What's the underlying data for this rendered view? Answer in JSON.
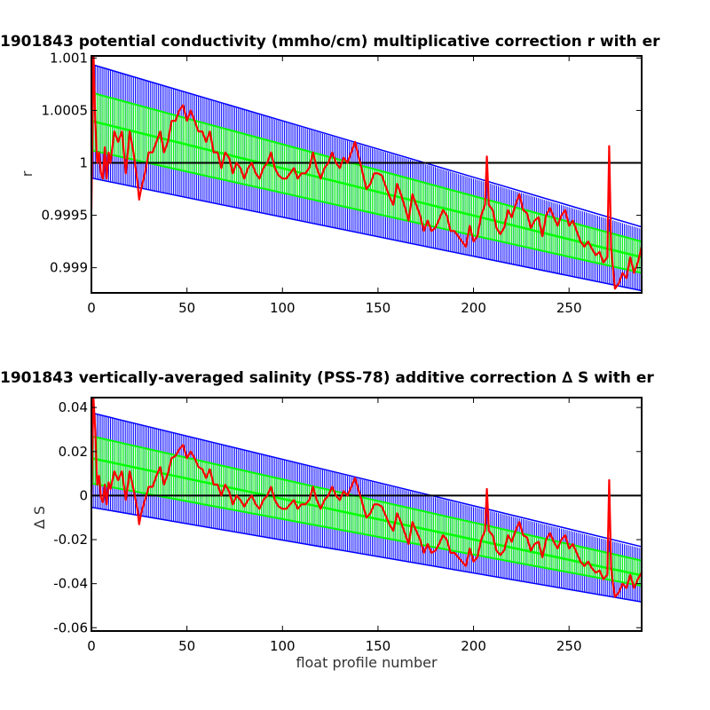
{
  "figure": {
    "float_id": "1901843"
  },
  "chart_data": [
    {
      "type": "line",
      "title": "1901843 potential conductivity (mmho/cm) multiplicative correction r with er",
      "xlabel": "",
      "ylabel": "r",
      "xlim": [
        0,
        288
      ],
      "ylim": [
        0.99876,
        1.00102
      ],
      "xticks": [
        "0",
        "50",
        "100",
        "150",
        "200",
        "250"
      ],
      "yticks": [
        "0.999",
        "0.9995",
        "1",
        "1.0005",
        "1.001"
      ],
      "reference_line": 1.0,
      "grid": false,
      "legend": "none",
      "colors": {
        "outer_band": "#0000ff",
        "inner_band": "#00ff00",
        "series": "#ff0000",
        "reference": "#000000"
      },
      "outer_band": {
        "x": [
          0,
          288
        ],
        "lower": [
          0.999855,
          0.998775
        ],
        "upper": [
          1.00094,
          0.99937
        ]
      },
      "inner_band": {
        "x": [
          0,
          288
        ],
        "lower": [
          1.00012,
          0.99895
        ],
        "upper": [
          1.00067,
          0.99925
        ]
      },
      "center_line": {
        "x": [
          0,
          288
        ],
        "y": [
          1.0004,
          0.9991
        ]
      },
      "series": [
        {
          "x": [
            0,
            1,
            2,
            3,
            4,
            5,
            6,
            7,
            8,
            9,
            10,
            12,
            14,
            16,
            18,
            20,
            22,
            24,
            25,
            26,
            28,
            30,
            32,
            34,
            36,
            38,
            40,
            42,
            44,
            46,
            48,
            50,
            52,
            54,
            56,
            58,
            60,
            62,
            64,
            66,
            68,
            70,
            72,
            74,
            76,
            78,
            80,
            82,
            84,
            86,
            88,
            90,
            92,
            94,
            96,
            98,
            100,
            102,
            104,
            106,
            108,
            110,
            112,
            114,
            116,
            118,
            120,
            122,
            124,
            126,
            128,
            130,
            132,
            134,
            136,
            138,
            140,
            142,
            144,
            146,
            148,
            150,
            152,
            154,
            156,
            158,
            160,
            162,
            164,
            166,
            168,
            170,
            172,
            174,
            176,
            178,
            180,
            182,
            184,
            186,
            188,
            190,
            192,
            194,
            196,
            198,
            200,
            202,
            204,
            206,
            207,
            208,
            210,
            212,
            214,
            216,
            218,
            220,
            222,
            224,
            226,
            228,
            230,
            232,
            234,
            236,
            238,
            240,
            242,
            244,
            246,
            248,
            250,
            252,
            254,
            256,
            258,
            260,
            262,
            264,
            266,
            268,
            270,
            271,
            272,
            273,
            274,
            276,
            278,
            280,
            282,
            284,
            286,
            288
          ],
          "y": [
            0.99955,
            1.0011,
            1.0004,
            1.0,
            1.0001,
            0.9999,
            0.99985,
            1.00015,
            0.99985,
            1.0001,
            1.0,
            1.0003,
            1.0002,
            1.0003,
            0.9999,
            1.0003,
            1.0001,
            0.99983,
            0.99965,
            0.99975,
            0.9999,
            1.0001,
            1.0001,
            1.0002,
            1.0003,
            1.0001,
            1.0002,
            1.0004,
            1.0004,
            1.0005,
            1.00055,
            1.0004,
            1.0005,
            1.0004,
            1.0003,
            1.0003,
            1.0002,
            1.0003,
            1.0001,
            1.0001,
            0.99995,
            1.0001,
            1.00005,
            0.9999,
            1.0,
            0.99995,
            0.99985,
            0.99995,
            1.0,
            0.9999,
            0.99985,
            0.99995,
            1.0,
            1.0001,
            0.99995,
            0.99988,
            0.99985,
            0.99985,
            0.9999,
            0.99995,
            0.99985,
            0.9999,
            0.9999,
            0.99995,
            1.0001,
            0.99995,
            0.99985,
            0.99995,
            1.0,
            1.0001,
            1.0,
            0.99995,
            1.00005,
            1.0,
            1.0001,
            1.0002,
            1.00005,
            0.9999,
            0.99975,
            0.9998,
            0.9999,
            0.9999,
            0.99988,
            0.99978,
            0.99968,
            0.9996,
            0.9998,
            0.9997,
            0.99958,
            0.99945,
            0.9997,
            0.9996,
            0.9995,
            0.99935,
            0.99945,
            0.99935,
            0.99938,
            0.99946,
            0.99955,
            0.9995,
            0.99935,
            0.99935,
            0.9993,
            0.99925,
            0.9992,
            0.9994,
            0.99925,
            0.9993,
            0.9995,
            0.9996,
            1.00006,
            0.9996,
            0.99955,
            0.99938,
            0.99932,
            0.99938,
            0.99955,
            0.99948,
            0.9996,
            0.9997,
            0.99955,
            0.99952,
            0.99938,
            0.99945,
            0.99948,
            0.9993,
            0.9995,
            0.99957,
            0.99948,
            0.9994,
            0.9995,
            0.99955,
            0.9994,
            0.99945,
            0.99935,
            0.99925,
            0.9992,
            0.99925,
            0.99918,
            0.99912,
            0.99915,
            0.99905,
            0.9991,
            1.00016,
            0.99918,
            0.999,
            0.9988,
            0.99885,
            0.99895,
            0.9989,
            0.9991,
            0.99895,
            0.99905,
            0.9992
          ]
        }
      ]
    },
    {
      "type": "line",
      "title": "1901843 vertically-averaged salinity (PSS-78) additive correction ∆ S with er",
      "xlabel": "float profile number",
      "ylabel": "∆ S",
      "xlim": [
        0,
        288
      ],
      "ylim": [
        -0.0615,
        0.0445
      ],
      "xticks": [
        "0",
        "50",
        "100",
        "150",
        "200",
        "250"
      ],
      "yticks": [
        "-0.06",
        "-0.04",
        "-0.02",
        "0",
        "0.02",
        "0.04"
      ],
      "reference_line": 0,
      "grid": false,
      "legend": "none",
      "colors": {
        "outer_band": "#0000ff",
        "inner_band": "#00ff00",
        "series": "#ff0000",
        "reference": "#000000"
      },
      "outer_band": {
        "x": [
          0,
          288
        ],
        "lower": [
          -0.0053,
          -0.0485
        ],
        "upper": [
          0.0376,
          -0.024
        ]
      },
      "inner_band": {
        "x": [
          0,
          288
        ],
        "lower": [
          0.0055,
          -0.041
        ],
        "upper": [
          0.027,
          -0.0295
        ]
      },
      "center_line": {
        "x": [
          0,
          288
        ],
        "y": [
          0.017,
          -0.0362
        ]
      },
      "series": [
        {
          "x": [
            0,
            1,
            2,
            3,
            4,
            5,
            6,
            7,
            8,
            9,
            10,
            12,
            14,
            16,
            18,
            20,
            22,
            24,
            25,
            26,
            28,
            30,
            32,
            34,
            36,
            38,
            40,
            42,
            44,
            46,
            48,
            50,
            52,
            54,
            56,
            58,
            60,
            62,
            64,
            66,
            68,
            70,
            72,
            74,
            76,
            78,
            80,
            82,
            84,
            86,
            88,
            90,
            92,
            94,
            96,
            98,
            100,
            102,
            104,
            106,
            108,
            110,
            112,
            114,
            116,
            118,
            120,
            122,
            124,
            126,
            128,
            130,
            132,
            134,
            136,
            138,
            140,
            142,
            144,
            146,
            148,
            150,
            152,
            154,
            156,
            158,
            160,
            162,
            164,
            166,
            168,
            170,
            172,
            174,
            176,
            178,
            180,
            182,
            184,
            186,
            188,
            190,
            192,
            194,
            196,
            198,
            200,
            202,
            204,
            206,
            207,
            208,
            210,
            212,
            214,
            216,
            218,
            220,
            222,
            224,
            226,
            228,
            230,
            232,
            234,
            236,
            238,
            240,
            242,
            244,
            246,
            248,
            250,
            252,
            254,
            256,
            258,
            260,
            262,
            264,
            266,
            268,
            270,
            271,
            272,
            273,
            274,
            276,
            278,
            280,
            282,
            284,
            286,
            288
          ],
          "y": [
            -0.001,
            0.045,
            0.03,
            0.005,
            0.009,
            -0.001,
            -0.003,
            0.005,
            -0.004,
            0.006,
            0.003,
            0.011,
            0.007,
            0.011,
            -0.002,
            0.011,
            0.003,
            -0.006,
            -0.013,
            -0.008,
            -0.002,
            0.004,
            0.004,
            0.009,
            0.013,
            0.005,
            0.01,
            0.017,
            0.018,
            0.021,
            0.023,
            0.017,
            0.02,
            0.017,
            0.013,
            0.012,
            0.008,
            0.012,
            0.005,
            0.005,
            0.0,
            0.005,
            0.002,
            -0.004,
            0.0,
            -0.002,
            -0.005,
            -0.002,
            0.0,
            -0.004,
            -0.006,
            -0.002,
            0.0,
            0.004,
            -0.002,
            -0.005,
            -0.006,
            -0.006,
            -0.004,
            -0.002,
            -0.006,
            -0.004,
            -0.004,
            -0.002,
            0.004,
            -0.002,
            -0.006,
            -0.002,
            0.0,
            0.004,
            0.0,
            -0.002,
            0.002,
            0.0,
            0.004,
            0.008,
            0.002,
            -0.004,
            -0.01,
            -0.008,
            -0.004,
            -0.004,
            -0.005,
            -0.009,
            -0.013,
            -0.016,
            -0.008,
            -0.012,
            -0.017,
            -0.022,
            -0.012,
            -0.016,
            -0.02,
            -0.026,
            -0.022,
            -0.026,
            -0.025,
            -0.022,
            -0.018,
            -0.02,
            -0.026,
            -0.026,
            -0.028,
            -0.03,
            -0.032,
            -0.024,
            -0.03,
            -0.028,
            -0.02,
            -0.016,
            0.003,
            -0.016,
            -0.018,
            -0.025,
            -0.027,
            -0.025,
            -0.018,
            -0.021,
            -0.016,
            -0.012,
            -0.018,
            -0.019,
            -0.025,
            -0.022,
            -0.021,
            -0.028,
            -0.02,
            -0.017,
            -0.021,
            -0.024,
            -0.02,
            -0.018,
            -0.024,
            -0.022,
            -0.026,
            -0.03,
            -0.032,
            -0.03,
            -0.033,
            -0.035,
            -0.034,
            -0.038,
            -0.036,
            0.007,
            -0.033,
            -0.04,
            -0.046,
            -0.044,
            -0.04,
            -0.042,
            -0.036,
            -0.042,
            -0.038,
            -0.035
          ]
        }
      ]
    }
  ]
}
